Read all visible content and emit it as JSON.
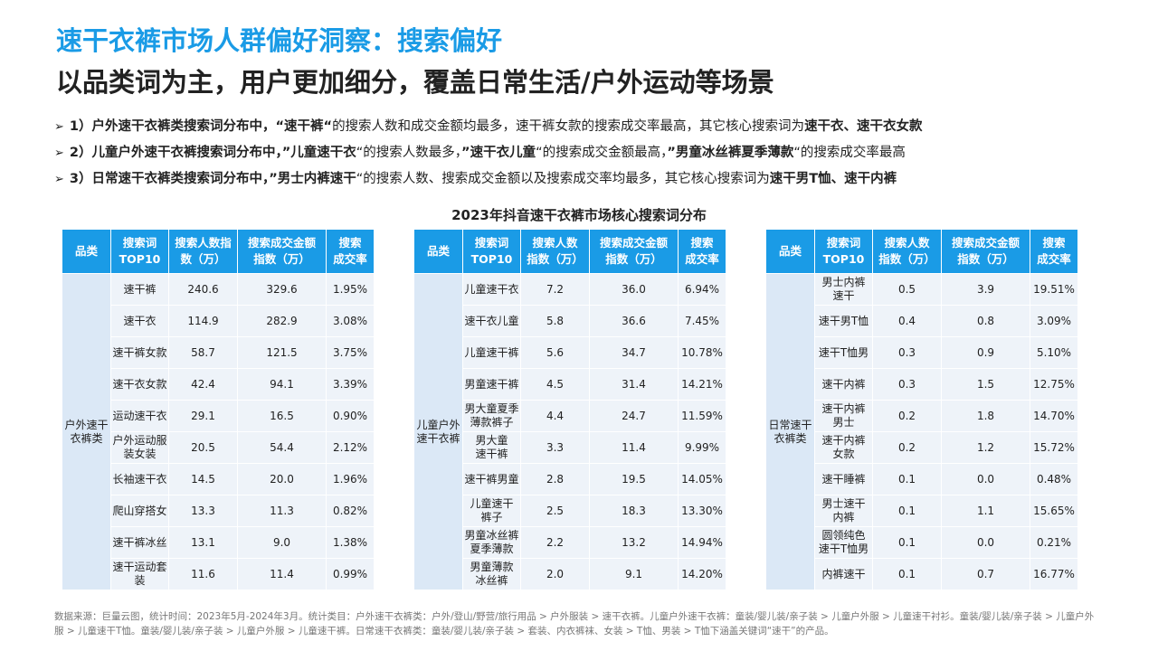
{
  "title": "速干衣裤市场人群偏好洞察：搜索偏好",
  "subtitle": "以品类词为主，用户更加细分，覆盖日常生活/户外运动等场景",
  "bullets": [
    {
      "segments": [
        {
          "text": "1）户外速干衣裤类搜索词分布中，“速干裤“",
          "bold": true
        },
        {
          "text": "的搜索人数和成交金额均最多，速干裤女款的搜索成交率最高，其它核心搜索词为",
          "bold": false
        },
        {
          "text": "速干衣、速干衣女款",
          "bold": true
        }
      ]
    },
    {
      "segments": [
        {
          "text": "2）儿童户外速干衣裤搜索词分布中，”儿童速干衣",
          "bold": true
        },
        {
          "text": "“的搜索人数最多，",
          "bold": false
        },
        {
          "text": "”速干衣儿童",
          "bold": true
        },
        {
          "text": "“的搜索成交金额最高，",
          "bold": false
        },
        {
          "text": "”男童冰丝裤夏季薄款",
          "bold": true
        },
        {
          "text": "“的搜索成交率最高",
          "bold": false
        }
      ]
    },
    {
      "segments": [
        {
          "text": "3）日常速干衣裤类搜索词分布中，”男士内裤速干",
          "bold": true
        },
        {
          "text": "“的搜索人数、搜索成交金额以及搜索成交率均最多，其它核心搜索词为",
          "bold": false
        },
        {
          "text": "速干男T恤、速干内裤",
          "bold": true
        }
      ]
    }
  ],
  "table_title": "2023年抖音速干衣裤市场核心搜索词分布",
  "tables": [
    {
      "headers": [
        "品类",
        "搜索词\nTOP10",
        "搜索人数指\n数（万）",
        "搜索成交金额\n指数（万）",
        "搜索\n成交率"
      ],
      "category": "户外速干\n衣裤类",
      "rows": [
        [
          "速干裤",
          "240.6",
          "329.6",
          "1.95%"
        ],
        [
          "速干衣",
          "114.9",
          "282.9",
          "3.08%"
        ],
        [
          "速干裤女款",
          "58.7",
          "121.5",
          "3.75%"
        ],
        [
          "速干衣女款",
          "42.4",
          "94.1",
          "3.39%"
        ],
        [
          "运动速干衣",
          "29.1",
          "16.5",
          "0.90%"
        ],
        [
          "户外运动服\n装女装",
          "20.5",
          "54.4",
          "2.12%"
        ],
        [
          "长袖速干衣",
          "14.5",
          "20.0",
          "1.96%"
        ],
        [
          "爬山穿搭女",
          "13.3",
          "11.3",
          "0.82%"
        ],
        [
          "速干裤冰丝",
          "13.1",
          "9.0",
          "1.38%"
        ],
        [
          "速干运动套\n装",
          "11.6",
          "11.4",
          "0.99%"
        ]
      ]
    },
    {
      "headers": [
        "品类",
        "搜索词\nTOP10",
        "搜索人数\n指数（万）",
        "搜索成交金额\n指数（万）",
        "搜索\n成交率"
      ],
      "category": "儿童户外\n速干衣裤",
      "rows": [
        [
          "儿童速干衣",
          "7.2",
          "36.0",
          "6.94%"
        ],
        [
          "速干衣儿童",
          "5.8",
          "36.6",
          "7.45%"
        ],
        [
          "儿童速干裤",
          "5.6",
          "34.7",
          "10.78%"
        ],
        [
          "男童速干裤",
          "4.5",
          "31.4",
          "14.21%"
        ],
        [
          "男大童夏季\n薄款裤子",
          "4.4",
          "24.7",
          "11.59%"
        ],
        [
          "男大童\n速干裤",
          "3.3",
          "11.4",
          "9.99%"
        ],
        [
          "速干裤男童",
          "2.8",
          "19.5",
          "14.05%"
        ],
        [
          "儿童速干\n裤子",
          "2.5",
          "18.3",
          "13.30%"
        ],
        [
          "男童冰丝裤\n夏季薄款",
          "2.2",
          "13.2",
          "14.94%"
        ],
        [
          "男童薄款\n冰丝裤",
          "2.0",
          "9.1",
          "14.20%"
        ]
      ]
    },
    {
      "headers": [
        "品类",
        "搜索词\nTOP10",
        "搜索人数\n指数（万）",
        "搜索成交金额\n指数（万）",
        "搜索\n成交率"
      ],
      "category": "日常速干\n衣裤类",
      "rows": [
        [
          "男士内裤\n速干",
          "0.5",
          "3.9",
          "19.51%"
        ],
        [
          "速干男T恤",
          "0.4",
          "0.8",
          "3.09%"
        ],
        [
          "速干T恤男",
          "0.3",
          "0.9",
          "5.10%"
        ],
        [
          "速干内裤",
          "0.3",
          "1.5",
          "12.75%"
        ],
        [
          "速干内裤\n男士",
          "0.2",
          "1.8",
          "14.70%"
        ],
        [
          "速干内裤\n女款",
          "0.2",
          "1.2",
          "15.72%"
        ],
        [
          "速干睡裤",
          "0.1",
          "0.0",
          "0.48%"
        ],
        [
          "男士速干\n内裤",
          "0.1",
          "1.1",
          "15.65%"
        ],
        [
          "圆领纯色\n速干T恤男",
          "0.1",
          "0.0",
          "0.21%"
        ],
        [
          "内裤速干",
          "0.1",
          "0.7",
          "16.77%"
        ]
      ]
    }
  ],
  "footnote": "数据来源：巨量云图，统计时间：2023年5月-2024年3月。统计类目：户外速干衣裤类：户外/登山/野营/旅行用品 > 户外服装 > 速干衣裤。儿童户外速干衣裤：童装/婴儿装/亲子装 > 儿童户外服 > 儿童速干衬衫。童装/婴儿装/亲子装 > 儿童户外服 > 儿童速干T恤。童装/婴儿装/亲子装 > 儿童户外服 > 儿童速干裤。日常速干衣裤类：童装/婴儿装/亲子装 > 套装、内衣裤袜、女装 > T恤、男装 > T恤下涵盖关键词“速干”的产品。"
}
